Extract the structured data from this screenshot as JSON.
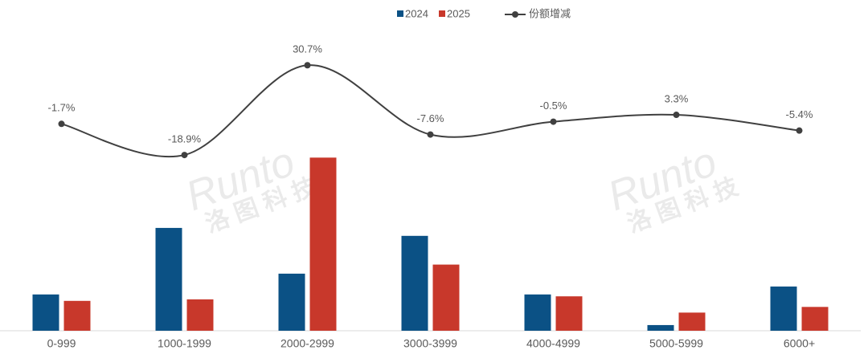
{
  "chart_data": {
    "type": "bar-line",
    "categories": [
      "0-999",
      "1000-1999",
      "2000-2999",
      "3000-3999",
      "4000-4999",
      "5000-5999",
      "6000+"
    ],
    "series": [
      {
        "name": "2024",
        "type": "bar",
        "color": "#0b5185",
        "values": [
          9.6,
          27.2,
          15.1,
          25.1,
          9.6,
          1.5,
          11.7
        ]
      },
      {
        "name": "2025",
        "type": "bar",
        "color": "#c8382b",
        "values": [
          7.9,
          8.3,
          45.8,
          17.5,
          9.1,
          4.8,
          6.3
        ]
      },
      {
        "name": "份额增减",
        "type": "line",
        "axis": "y2",
        "color": "#404040",
        "values": [
          -1.7,
          -18.9,
          30.7,
          -7.6,
          -0.5,
          3.3,
          -5.4
        ],
        "value_labels": [
          "-1.7%",
          "-18.9%",
          "30.7%",
          "-7.6%",
          "-0.5%",
          "3.3%",
          "-5.4%"
        ]
      }
    ],
    "ylim": [
      0,
      79
    ],
    "y2lim": [
      -116,
      49
    ],
    "legend": "top",
    "watermark": [
      "Runto",
      "洛图科技"
    ]
  }
}
